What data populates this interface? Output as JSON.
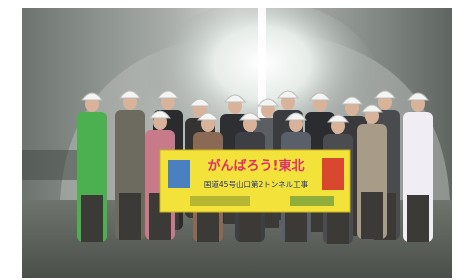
{
  "banner": {
    "title": "がんばろう!東北",
    "subtitle": "国道45号山口第2トンネル工事"
  }
}
